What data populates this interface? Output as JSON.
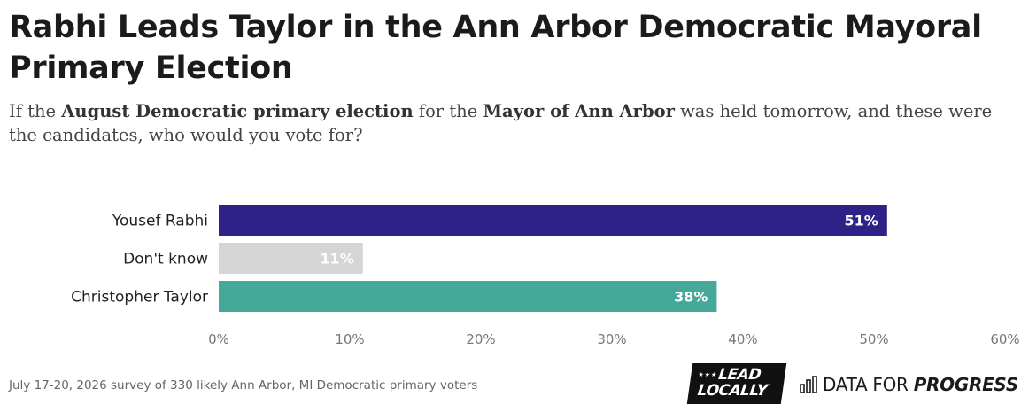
{
  "title": "Rabhi Leads Taylor in the Ann Arbor Democratic Mayoral Primary Election",
  "subtitle": {
    "p1": "If the ",
    "b1": "August Democratic primary election",
    "p2": " for the ",
    "b2": "Mayor of Ann Arbor",
    "p3": " was held tomorrow, and these were the candidates, who would you vote for?"
  },
  "chart_data": {
    "type": "bar",
    "orientation": "horizontal",
    "categories": [
      "Yousef Rabhi",
      "Don't know",
      "Christopher Taylor"
    ],
    "values": [
      51,
      11,
      38
    ],
    "value_labels": [
      "51%",
      "11%",
      "38%"
    ],
    "colors": [
      "#2e2188",
      "#d5d5d5",
      "#45a898"
    ],
    "xlim": [
      0,
      60
    ],
    "ticks": [
      0,
      10,
      20,
      30,
      40,
      50,
      60
    ],
    "tick_labels": [
      "0%",
      "10%",
      "20%",
      "30%",
      "40%",
      "50%",
      "60%"
    ],
    "grid": false,
    "legend": "none"
  },
  "footer": {
    "note": "July 17-20, 2026 survey of 330 likely Ann Arbor, MI Democratic primary voters"
  },
  "logos": {
    "lead_locally": {
      "stars": "★★★",
      "line1": "LEAD",
      "line2": "LOCALLY"
    },
    "data_for_progress": {
      "text": "DATA FOR",
      "bold": "PROGRESS",
      "icon": "bar-chart-icon"
    }
  }
}
